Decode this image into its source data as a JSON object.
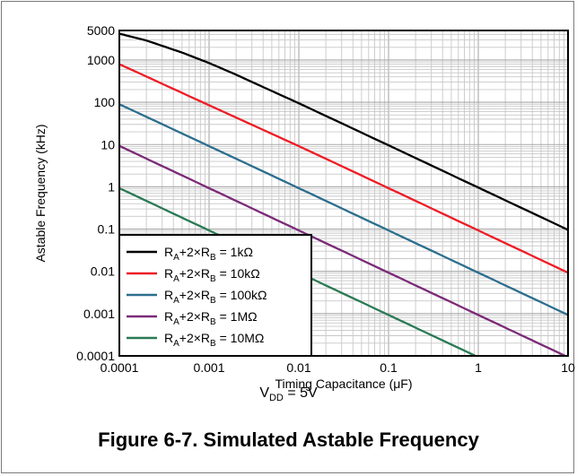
{
  "caption": "Figure 6-7. Simulated Astable Frequency",
  "subtitle": {
    "main": "V",
    "sub": "DD",
    "rest": " = 5V"
  },
  "chart_data": {
    "type": "line",
    "xscale": "log",
    "yscale": "log",
    "xlim": [
      0.0001,
      10
    ],
    "ylim": [
      0.0001,
      5000
    ],
    "xlabel": "Timing Capacitance (μF)",
    "ylabel": "Astable Frequency (kHz)",
    "xticks": [
      "0.0001",
      "0.001",
      "0.01",
      "0.1",
      "1",
      "10"
    ],
    "yticks": [
      "0.0001",
      "0.001",
      "0.01",
      "0.1",
      "1",
      "10",
      "100",
      "1000",
      "5000"
    ],
    "grid": true,
    "legend_position": "bottom-left",
    "series": [
      {
        "name": "RA+2×RB = 1kΩ",
        "value": "1kΩ",
        "color": "#000000",
        "points": [
          [
            0.0001,
            4200
          ],
          [
            0.0002,
            2900
          ],
          [
            0.0005,
            1500
          ],
          [
            0.001,
            850
          ],
          [
            0.002,
            450
          ],
          [
            0.005,
            185
          ],
          [
            0.01,
            95
          ],
          [
            0.1,
            9.6
          ],
          [
            1,
            0.96
          ],
          [
            10,
            0.096
          ]
        ]
      },
      {
        "name": "RA+2×RB = 10kΩ",
        "value": "10kΩ",
        "color": "#ee1c25",
        "points": [
          [
            0.0001,
            800
          ],
          [
            0.001,
            85
          ],
          [
            0.01,
            9.2
          ],
          [
            0.1,
            0.93
          ],
          [
            1,
            0.093
          ],
          [
            10,
            0.0093
          ]
        ]
      },
      {
        "name": "RA+2×RB = 100kΩ",
        "value": "100kΩ",
        "color": "#2c6e8e",
        "points": [
          [
            0.0001,
            90
          ],
          [
            0.001,
            9.2
          ],
          [
            0.01,
            0.93
          ],
          [
            0.1,
            0.093
          ],
          [
            1,
            0.0093
          ],
          [
            10,
            0.00093
          ]
        ]
      },
      {
        "name": "RA+2×RB = 1MΩ",
        "value": "1MΩ",
        "color": "#7b2a78",
        "points": [
          [
            0.0001,
            9.3
          ],
          [
            0.001,
            0.93
          ],
          [
            0.01,
            0.093
          ],
          [
            0.1,
            0.0093
          ],
          [
            1,
            0.00093
          ],
          [
            10,
            9.3e-05
          ]
        ]
      },
      {
        "name": "RA+2×RB = 10MΩ",
        "value": "10MΩ",
        "color": "#2a7a55",
        "points": [
          [
            0.0001,
            0.93
          ],
          [
            0.001,
            0.093
          ],
          [
            0.01,
            0.0093
          ],
          [
            0.1,
            0.00093
          ],
          [
            1,
            9.3e-05
          ]
        ]
      }
    ]
  }
}
